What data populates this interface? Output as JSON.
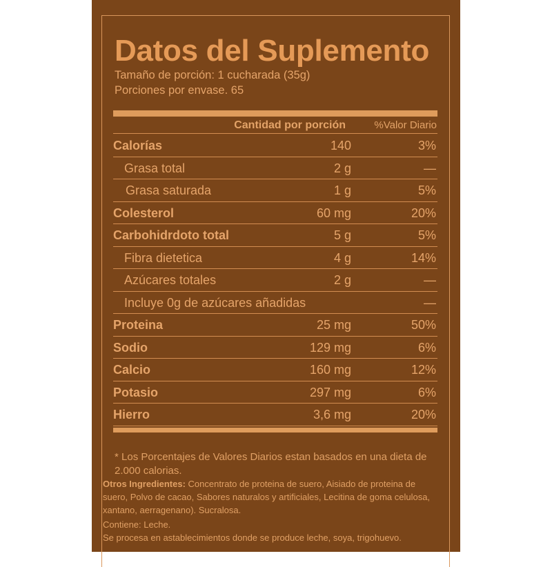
{
  "title": "Datos del Suplemento",
  "serving_size": "Tamaño de porción: 1 cucharada (35g)",
  "servings_per_container": "Porciones por envase. 65",
  "header": {
    "amount": "Cantidad por porción",
    "daily_value": "%Valor Diario"
  },
  "rows": [
    {
      "name": "Calorías",
      "amount": "140",
      "dv": "3%",
      "bold": true,
      "indent": 0
    },
    {
      "name": "Grasa total",
      "amount": "2 g",
      "dv": "—",
      "bold": false,
      "indent": 1
    },
    {
      "name": "Grasa saturada",
      "amount": "1 g",
      "dv": "5%",
      "bold": false,
      "indent": 2
    },
    {
      "name": "Colesterol",
      "amount": "60 mg",
      "dv": "20%",
      "bold": true,
      "indent": 0
    },
    {
      "name": "Carbohidrdoto total",
      "amount": "5 g",
      "dv": "5%",
      "bold": true,
      "indent": 0
    },
    {
      "name": "Fibra dietetica",
      "amount": "4 g",
      "dv": "14%",
      "bold": false,
      "indent": 1
    },
    {
      "name": "Azúcares totales",
      "amount": "2 g",
      "dv": "—",
      "bold": false,
      "indent": 1
    },
    {
      "name": "Incluye 0g de azúcares añadidas",
      "amount": "",
      "dv": "—",
      "bold": false,
      "indent": 1
    },
    {
      "name": "Proteina",
      "amount": "25 mg",
      "dv": "50%",
      "bold": true,
      "indent": 0
    },
    {
      "name": "Sodio",
      "amount": "129 mg",
      "dv": "6%",
      "bold": true,
      "indent": 0
    },
    {
      "name": "Calcio",
      "amount": "160 mg",
      "dv": "12%",
      "bold": true,
      "indent": 0
    },
    {
      "name": "Potasio",
      "amount": "297 mg",
      "dv": "6%",
      "bold": true,
      "indent": 0
    },
    {
      "name": "Hierro",
      "amount": "3,6 mg",
      "dv": "20%",
      "bold": true,
      "indent": 0
    }
  ],
  "footnote": "* Los Porcentajes de Valores Diarios estan basados en una dieta de 2.000 calorias.",
  "ingredients": {
    "label": "Otros Ingredientes:",
    "text": "Concentrato de proteina de suero, Aisiado de proteina de suero, Polvo de cacao, Sabores naturalos y artificiales, Lecitina de goma celulosa, xantano, aerragenano). Sucralosa.",
    "contains": "Contiene: Leche.",
    "facility": "Se procesa en astablecimientos donde se produce leche, soya, trigohuevo."
  },
  "colors": {
    "background": "#7a4519",
    "text": "#e5a46a"
  }
}
